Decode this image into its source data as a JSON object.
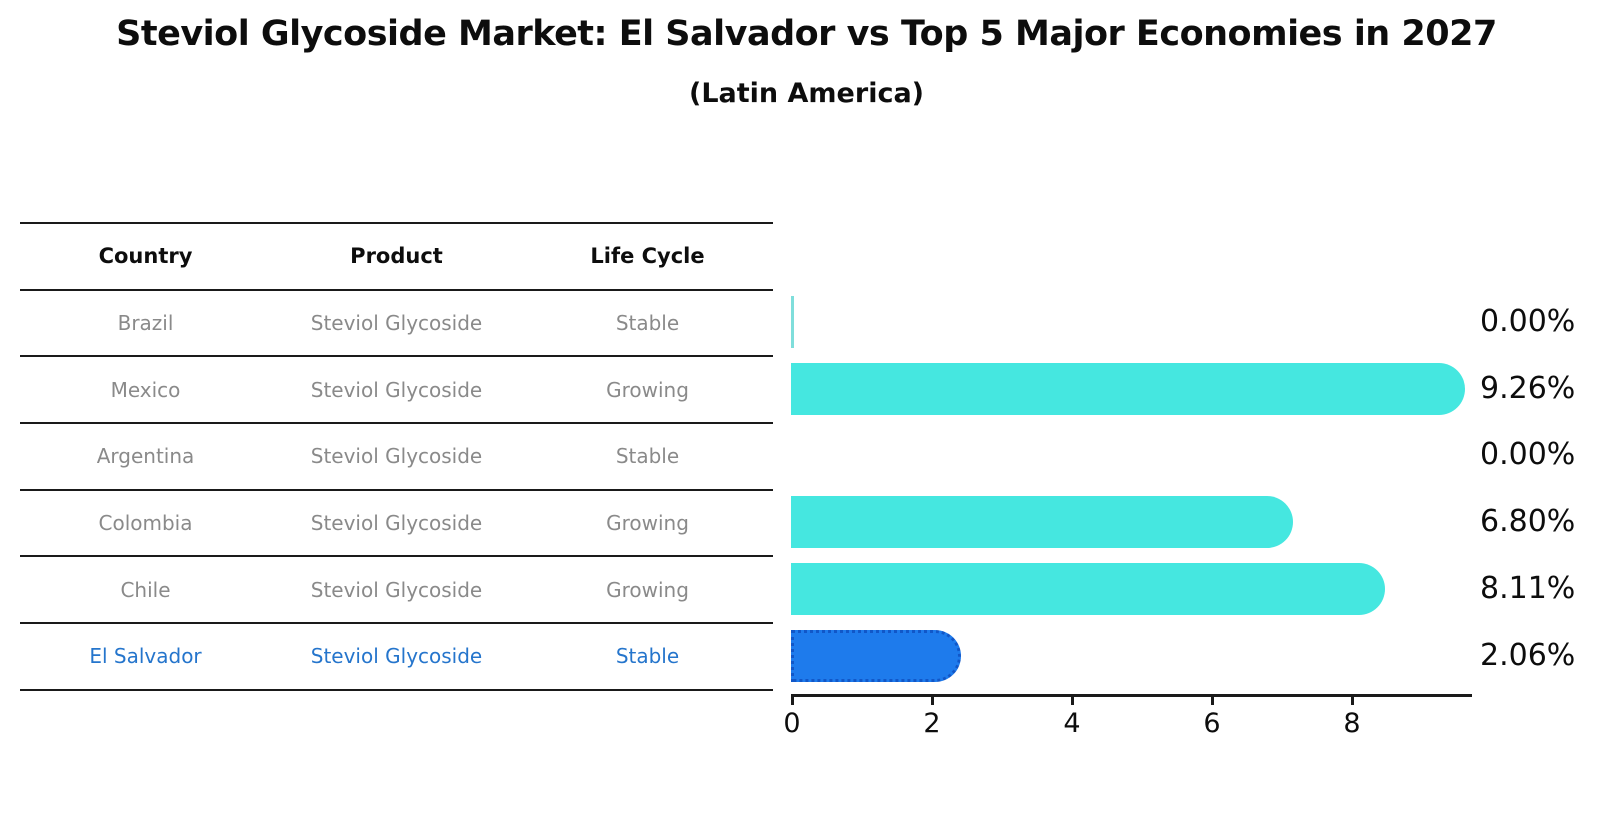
{
  "header": {
    "title": "Steviol Glycoside Market: El Salvador vs Top 5 Major Economies in 2027",
    "subtitle": "(Latin America)"
  },
  "table": {
    "headers": [
      "Country",
      "Product",
      "Life Cycle"
    ],
    "rows": [
      {
        "country": "Brazil",
        "product": "Steviol Glycoside",
        "life_cycle": "Stable"
      },
      {
        "country": "Mexico",
        "product": "Steviol Glycoside",
        "life_cycle": "Growing"
      },
      {
        "country": "Argentina",
        "product": "Steviol Glycoside",
        "life_cycle": "Stable"
      },
      {
        "country": "Colombia",
        "product": "Steviol Glycoside",
        "life_cycle": "Growing"
      },
      {
        "country": "Chile",
        "product": "Steviol Glycoside",
        "life_cycle": "Growing"
      },
      {
        "country": "El Salvador",
        "product": "Steviol Glycoside",
        "life_cycle": "Stable"
      }
    ],
    "highlight_row": 5
  },
  "chart_data": {
    "type": "bar",
    "orientation": "horizontal",
    "title": "Steviol Glycoside Market: El Salvador vs Top 5 Major Economies in 2027 (Latin America)",
    "categories": [
      "Brazil",
      "Mexico",
      "Argentina",
      "Colombia",
      "Chile",
      "El Salvador"
    ],
    "values": [
      0.0,
      9.26,
      0.0,
      6.8,
      8.11,
      2.06
    ],
    "value_labels": [
      "0.00%",
      "9.26%",
      "0.00%",
      "6.80%",
      "8.11%",
      "2.06%"
    ],
    "value_unit": "%",
    "xlim": [
      0,
      9.7
    ],
    "xticks": [
      "0",
      "2",
      "4",
      "6",
      "8"
    ],
    "grid": false,
    "legend": false,
    "highlight_index": 5,
    "colors": {
      "bar_default": "#45e7e0",
      "bar_zero_sliver": "#7fdedb",
      "bar_highlight": "#1e7bec",
      "bar_highlight_border": "#1157c8",
      "highlight_text": "#2575cc",
      "table_text": "#8a8a8a",
      "axis_text": "#0d0d0d"
    }
  }
}
